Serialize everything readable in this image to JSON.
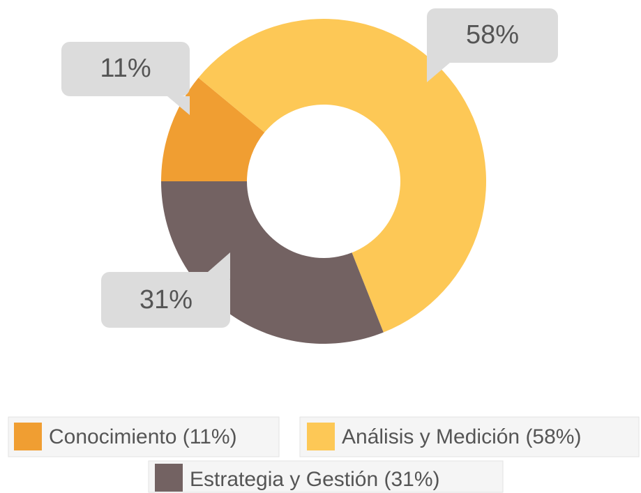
{
  "chart_data": {
    "type": "donut",
    "categories": [
      "Conocimiento",
      "Análisis y Medición",
      "Estrategia y Gestión"
    ],
    "values": [
      11,
      58,
      31
    ],
    "value_labels": [
      "11%",
      "58%",
      "31%"
    ],
    "legend_labels": [
      "Conocimiento (11%)",
      "Análisis y Medición (58%)",
      "Estrategia y Gestión (31%)"
    ],
    "colors": [
      "#f09e32",
      "#fdc856",
      "#736262"
    ]
  }
}
